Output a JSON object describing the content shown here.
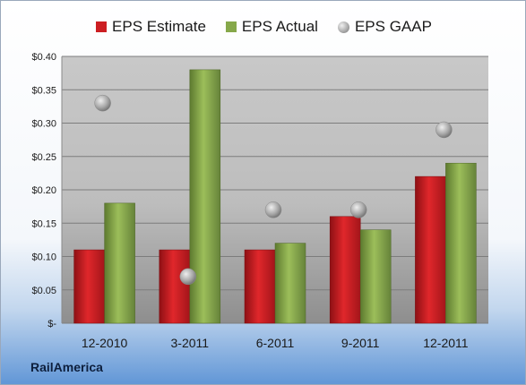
{
  "brand": "RailAmerica",
  "legend": [
    {
      "name": "EPS Estimate",
      "color": "#cc1e22",
      "shape": "square"
    },
    {
      "name": "EPS Actual",
      "color": "#86a84a",
      "shape": "square"
    },
    {
      "name": "EPS GAAP",
      "color": "#b5b5b5",
      "shape": "ball"
    }
  ],
  "colors": {
    "estimate": "#cc1e22",
    "actual": "#86a84a",
    "gaap": "#b0b0b0"
  },
  "chart_data": {
    "type": "bar",
    "categories": [
      "12-2010",
      "3-2011",
      "6-2011",
      "9-2011",
      "12-2011"
    ],
    "series": [
      {
        "name": "EPS Estimate",
        "type": "bar",
        "values": [
          0.11,
          0.11,
          0.11,
          0.16,
          0.22
        ]
      },
      {
        "name": "EPS Actual",
        "type": "bar",
        "values": [
          0.18,
          0.38,
          0.12,
          0.14,
          0.24
        ]
      },
      {
        "name": "EPS GAAP",
        "type": "scatter",
        "values": [
          0.33,
          0.07,
          0.17,
          0.17,
          0.29
        ]
      }
    ],
    "yticks": [
      "$-",
      "$0.05",
      "$0.10",
      "$0.15",
      "$0.20",
      "$0.25",
      "$0.30",
      "$0.35",
      "$0.40"
    ],
    "ylim": [
      0,
      0.4
    ],
    "grid": true,
    "legend_position": "top"
  }
}
